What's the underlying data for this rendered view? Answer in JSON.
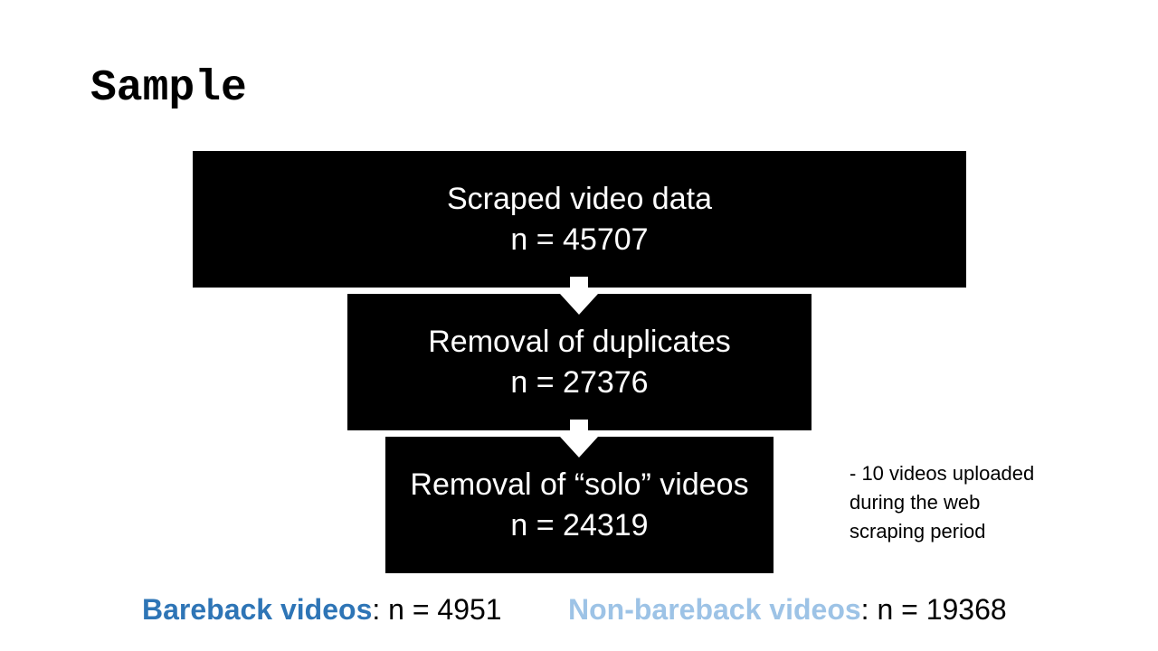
{
  "title": "Sample",
  "steps": [
    {
      "label": "Scraped video data",
      "count": "n = 45707"
    },
    {
      "label": "Removal of duplicates",
      "count": "n = 27376"
    },
    {
      "label": "Removal of “solo” videos",
      "count": "n = 24319"
    }
  ],
  "note": {
    "line1": "- 10 videos uploaded",
    "line2": "during the web",
    "line3": "scraping period"
  },
  "summary": {
    "bareback": {
      "label": "Bareback videos",
      "colon": ":",
      "value": " n = 4951",
      "color": "#2e75b6"
    },
    "non_bareback": {
      "label": "Non-bareback videos",
      "colon": ":",
      "value": " n = 19368",
      "color": "#9dc3e6"
    }
  },
  "colors": {
    "box": "#000000",
    "box_text": "#ffffff",
    "arrow": "#ffffff"
  }
}
